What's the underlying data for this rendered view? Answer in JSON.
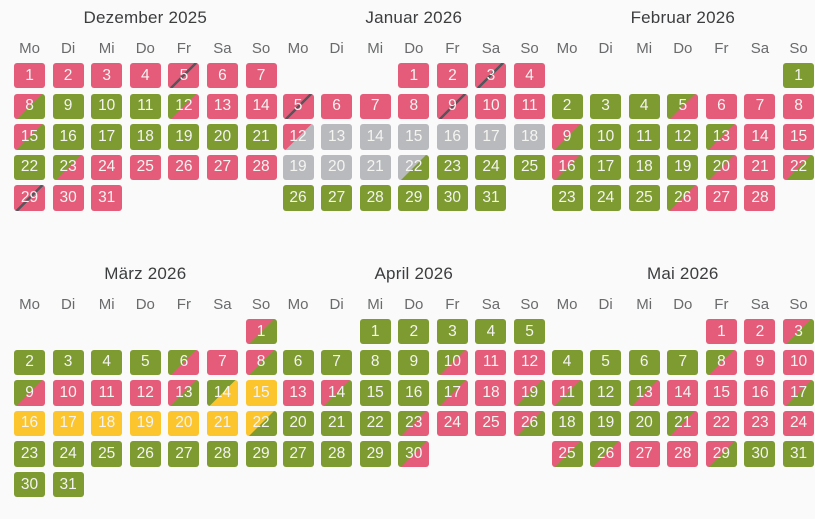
{
  "colors": {
    "pink": "#e45c7a",
    "green": "#7d9b31",
    "gray": "#b9babd",
    "yellow": "#fcc42d",
    "slash": "#54565c",
    "dayText": "#f4f4f1",
    "titleText": "#3c3d3f",
    "weekdayText": "#696a6c",
    "background": "#fafafa"
  },
  "weekdays": [
    "Mo",
    "Di",
    "Mi",
    "Do",
    "Fr",
    "Sa",
    "So"
  ],
  "months": [
    {
      "title": "Dezember 2025",
      "first_weekday": 0,
      "days": [
        "pink",
        "pink",
        "pink",
        "pink",
        "pink+slash",
        "pink",
        "pink",
        "pink/green",
        "green",
        "green",
        "green",
        "green/pink",
        "pink",
        "pink",
        "pink/green",
        "green",
        "green",
        "green",
        "green",
        "green",
        "green",
        "green",
        "green/pink",
        "pink",
        "pink",
        "pink",
        "pink",
        "pink",
        "pink+slash",
        "pink",
        "pink"
      ]
    },
    {
      "title": "Januar 2026",
      "first_weekday": 3,
      "days": [
        "pink",
        "pink",
        "pink+slash",
        "pink",
        "pink+slash",
        "pink",
        "pink",
        "pink",
        "pink+slash",
        "pink",
        "pink",
        "pink/gray",
        "gray",
        "gray",
        "gray",
        "gray",
        "gray",
        "gray",
        "gray",
        "gray",
        "gray",
        "gray/green",
        "green",
        "green",
        "green",
        "green",
        "green",
        "green",
        "green",
        "green",
        "green"
      ]
    },
    {
      "title": "Februar 2026",
      "first_weekday": 6,
      "days": [
        "green",
        "green",
        "green",
        "green",
        "green/pink",
        "pink",
        "pink",
        "pink",
        "pink/green",
        "green",
        "green",
        "green",
        "green/pink",
        "pink",
        "pink",
        "pink/green",
        "green",
        "green",
        "green",
        "green/pink",
        "pink",
        "pink/green",
        "green",
        "green",
        "green",
        "green/pink",
        "pink",
        "pink"
      ]
    },
    {
      "title": "März 2026",
      "first_weekday": 6,
      "days": [
        "pink/green",
        "green",
        "green",
        "green",
        "green",
        "green/pink",
        "pink",
        "pink/green",
        "green/pink",
        "pink",
        "pink",
        "pink",
        "pink/green",
        "green/yellow",
        "yellow",
        "yellow",
        "yellow",
        "yellow",
        "yellow",
        "yellow",
        "yellow",
        "yellow/green",
        "green",
        "green",
        "green",
        "green",
        "green",
        "green",
        "green",
        "green",
        "green"
      ]
    },
    {
      "title": "April 2026",
      "first_weekday": 2,
      "days": [
        "green",
        "green",
        "green",
        "green",
        "green",
        "green",
        "green",
        "green",
        "green",
        "green/pink",
        "pink",
        "pink",
        "pink",
        "pink/green",
        "green",
        "green",
        "green/pink",
        "pink",
        "pink/green",
        "green",
        "green",
        "green",
        "green/pink",
        "pink",
        "pink",
        "pink/green",
        "green",
        "green",
        "green",
        "green/pink"
      ]
    },
    {
      "title": "Mai 2026",
      "first_weekday": 4,
      "days": [
        "pink",
        "pink",
        "pink/green",
        "green",
        "green",
        "green",
        "green",
        "green/pink",
        "pink",
        "pink",
        "pink/green",
        "green",
        "green/pink",
        "pink",
        "pink",
        "pink",
        "pink/green",
        "green",
        "green",
        "green",
        "green/pink",
        "pink",
        "pink",
        "pink",
        "pink/green",
        "green/pink",
        "pink",
        "pink",
        "pink/green",
        "green",
        "green"
      ]
    }
  ]
}
